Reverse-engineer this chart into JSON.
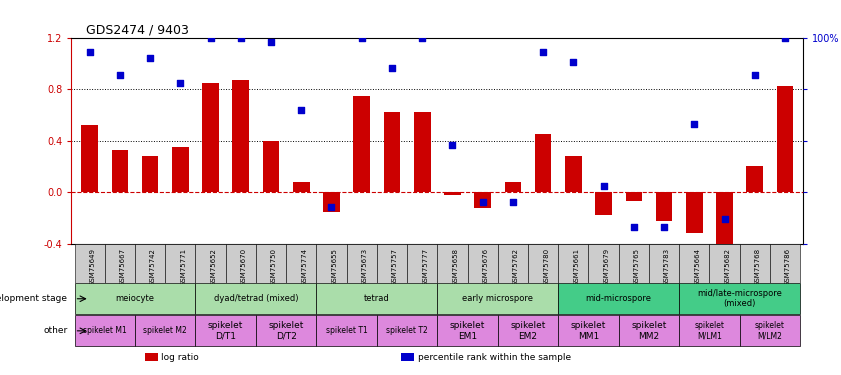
{
  "title": "GDS2474 / 9403",
  "samples": [
    "GSM75649",
    "GSM75667",
    "GSM75742",
    "GSM75771",
    "GSM75652",
    "GSM75670",
    "GSM75750",
    "GSM75774",
    "GSM75655",
    "GSM75673",
    "GSM75757",
    "GSM75777",
    "GSM75658",
    "GSM75676",
    "GSM75762",
    "GSM75780",
    "GSM75661",
    "GSM75679",
    "GSM75765",
    "GSM75783",
    "GSM75664",
    "GSM75682",
    "GSM75768",
    "GSM75786"
  ],
  "log_ratio": [
    0.52,
    0.33,
    0.28,
    0.35,
    0.85,
    0.87,
    0.4,
    0.08,
    -0.15,
    0.75,
    0.62,
    0.62,
    -0.02,
    -0.12,
    0.08,
    0.45,
    0.28,
    -0.18,
    -0.07,
    -0.22,
    -0.32,
    -0.52,
    0.2,
    0.82
  ],
  "percentile": [
    93,
    82,
    90,
    78,
    115,
    118,
    98,
    65,
    18,
    118,
    85,
    115,
    48,
    20,
    20,
    93,
    88,
    28,
    8,
    8,
    58,
    12,
    82,
    112
  ],
  "bar_color": "#cc0000",
  "dot_color": "#0000cc",
  "ylim_left": [
    -0.4,
    1.2
  ],
  "yticks_left": [
    -0.4,
    0.0,
    0.4,
    0.8,
    1.2
  ],
  "ylim_right": [
    0,
    100
  ],
  "yticks_right": [
    0,
    25,
    50,
    75,
    100
  ],
  "dev_stage_groups": [
    {
      "name": "meiocyte",
      "span": [
        0,
        4
      ],
      "color": "#aaddaa"
    },
    {
      "name": "dyad/tetrad (mixed)",
      "span": [
        4,
        8
      ],
      "color": "#aaddaa"
    },
    {
      "name": "tetrad",
      "span": [
        8,
        12
      ],
      "color": "#aaddaa"
    },
    {
      "name": "early microspore",
      "span": [
        12,
        16
      ],
      "color": "#aaddaa"
    },
    {
      "name": "mid-microspore",
      "span": [
        16,
        20
      ],
      "color": "#44cc88"
    },
    {
      "name": "mid/late-microspore\n(mixed)",
      "span": [
        20,
        24
      ],
      "color": "#44cc88"
    }
  ],
  "other_groups": [
    {
      "name": "spikelet M1",
      "span": [
        0,
        2
      ],
      "color": "#dd88dd",
      "fontsize": 5.5
    },
    {
      "name": "spikelet M2",
      "span": [
        2,
        4
      ],
      "color": "#dd88dd",
      "fontsize": 5.5
    },
    {
      "name": "spikelet\nD/T1",
      "span": [
        4,
        6
      ],
      "color": "#dd88dd",
      "fontsize": 6.5
    },
    {
      "name": "spikelet\nD/T2",
      "span": [
        6,
        8
      ],
      "color": "#dd88dd",
      "fontsize": 6.5
    },
    {
      "name": "spikelet T1",
      "span": [
        8,
        10
      ],
      "color": "#dd88dd",
      "fontsize": 5.5
    },
    {
      "name": "spikelet T2",
      "span": [
        10,
        12
      ],
      "color": "#dd88dd",
      "fontsize": 5.5
    },
    {
      "name": "spikelet\nEM1",
      "span": [
        12,
        14
      ],
      "color": "#dd88dd",
      "fontsize": 6.5
    },
    {
      "name": "spikelet\nEM2",
      "span": [
        14,
        16
      ],
      "color": "#dd88dd",
      "fontsize": 6.5
    },
    {
      "name": "spikelet\nMM1",
      "span": [
        16,
        18
      ],
      "color": "#dd88dd",
      "fontsize": 6.5
    },
    {
      "name": "spikelet\nMM2",
      "span": [
        18,
        20
      ],
      "color": "#dd88dd",
      "fontsize": 6.5
    },
    {
      "name": "spikelet\nM/LM1",
      "span": [
        20,
        22
      ],
      "color": "#dd88dd",
      "fontsize": 5.5
    },
    {
      "name": "spikelet\nM/LM2",
      "span": [
        22,
        24
      ],
      "color": "#dd88dd",
      "fontsize": 5.5
    }
  ],
  "sample_box_color": "#cccccc",
  "legend_items": [
    {
      "label": "log ratio",
      "color": "#cc0000"
    },
    {
      "label": "percentile rank within the sample",
      "color": "#0000cc"
    }
  ],
  "bg": "#ffffff"
}
